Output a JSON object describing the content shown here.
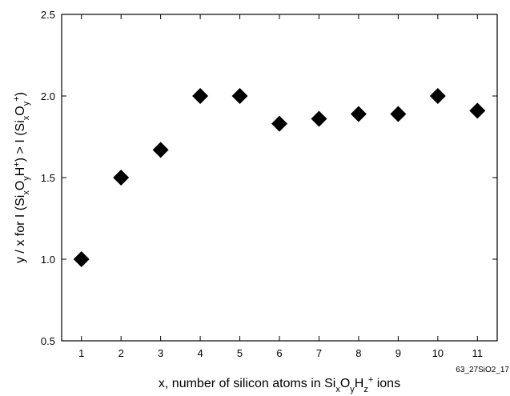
{
  "chart_data": {
    "type": "scatter",
    "marker": "diamond",
    "marker_color": "#000000",
    "x": [
      1,
      2,
      3,
      4,
      5,
      6,
      7,
      8,
      9,
      10,
      11
    ],
    "y": [
      1.0,
      1.5,
      1.67,
      2.0,
      2.0,
      1.83,
      1.86,
      1.89,
      1.89,
      2.0,
      1.91
    ],
    "xlim": [
      0.5,
      11.5
    ],
    "ylim": [
      0.5,
      2.5
    ],
    "xticks": [
      1,
      2,
      3,
      4,
      5,
      6,
      7,
      8,
      9,
      10,
      11
    ],
    "yticks": [
      0.5,
      1.0,
      1.5,
      2.0,
      2.5
    ],
    "xtick_labels": [
      "1",
      "2",
      "3",
      "4",
      "5",
      "6",
      "7",
      "8",
      "9",
      "10",
      "11"
    ],
    "ytick_labels": [
      "0.5",
      "1.0",
      "1.5",
      "2.0",
      "2.5"
    ],
    "xlabel": {
      "prefix": "x, number of silicon atoms in Si",
      "sub1": "x",
      "mid1": "O",
      "sub2": "y",
      "mid2": "H",
      "sub3": "z",
      "sup3": "+",
      "suffix": " ions"
    },
    "ylabel": {
      "prefix": "y / x for I (Si",
      "sub1": "x",
      "mid1": "O",
      "sub2": "y",
      "mid2": "H",
      "sup2": "+",
      "mid3": ") > I (Si",
      "sub4": "x",
      "mid4": "O",
      "sub5": "y",
      "sup5": "+",
      "suffix": ")"
    },
    "grid": false,
    "figure_id": "63_27SiO2_17"
  }
}
